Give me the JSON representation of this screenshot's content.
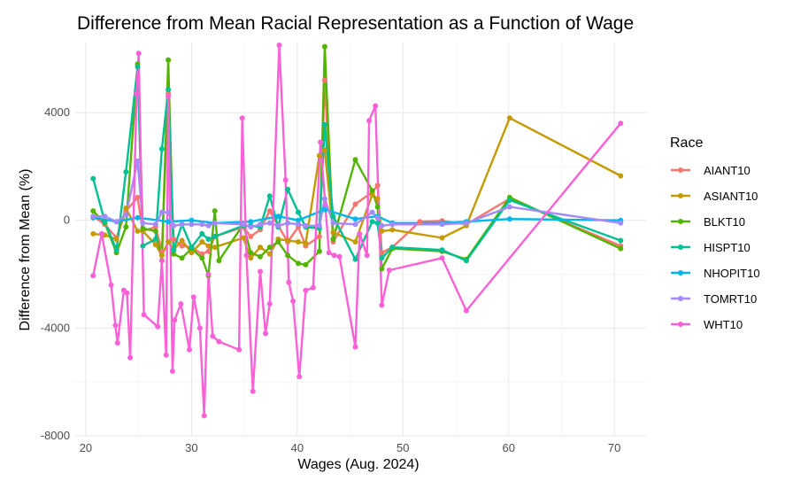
{
  "chart_data": {
    "type": "line",
    "title": "Difference from Mean Racial Representation as a Function of Wage",
    "xlabel": "Wages (Aug. 2024)",
    "ylabel": "Difference from Mean (%)",
    "xlim": [
      19,
      73
    ],
    "ylim": [
      -8000,
      6600
    ],
    "x_ticks": [
      20,
      30,
      40,
      50,
      60,
      70
    ],
    "y_ticks": [
      -8000,
      -4000,
      0,
      4000
    ],
    "grid": true,
    "legend": {
      "title": "Race",
      "position": "right"
    },
    "series": [
      {
        "name": "AIANT10",
        "color": "#F8766D",
        "points": [
          [
            20.7,
            150
          ],
          [
            21.8,
            -150
          ],
          [
            22.9,
            -650
          ],
          [
            23.8,
            350
          ],
          [
            24.9,
            850
          ],
          [
            25.4,
            -400
          ],
          [
            26.6,
            -250
          ],
          [
            27.2,
            -1150
          ],
          [
            27.8,
            4700
          ],
          [
            28.3,
            -700
          ],
          [
            29.1,
            -950
          ],
          [
            30.0,
            -1000
          ],
          [
            31.0,
            -1250
          ],
          [
            31.6,
            -1150
          ],
          [
            32.2,
            -600
          ],
          [
            34.9,
            -250
          ],
          [
            35.6,
            -600
          ],
          [
            36.5,
            -350
          ],
          [
            37.4,
            350
          ],
          [
            38.2,
            -200
          ],
          [
            39.1,
            -800
          ],
          [
            40.1,
            -250
          ],
          [
            40.8,
            -950
          ],
          [
            42.1,
            -600
          ],
          [
            42.6,
            5200
          ],
          [
            43.4,
            -800
          ],
          [
            45.5,
            600
          ],
          [
            47.1,
            1050
          ],
          [
            47.6,
            1300
          ],
          [
            48.0,
            -1200
          ],
          [
            49.0,
            -1000
          ],
          [
            51.6,
            -50
          ],
          [
            53.7,
            -20
          ],
          [
            56.0,
            -150
          ],
          [
            60.1,
            800
          ],
          [
            70.6,
            -950
          ]
        ]
      },
      {
        "name": "ASIANT10",
        "color": "#C49A00",
        "points": [
          [
            20.7,
            -500
          ],
          [
            21.8,
            -550
          ],
          [
            22.9,
            -700
          ],
          [
            23.8,
            450
          ],
          [
            24.9,
            -400
          ],
          [
            25.4,
            -400
          ],
          [
            26.6,
            -900
          ],
          [
            27.2,
            -1300
          ],
          [
            27.8,
            -800
          ],
          [
            28.3,
            -1100
          ],
          [
            29.1,
            -750
          ],
          [
            30.0,
            -1200
          ],
          [
            31.0,
            -800
          ],
          [
            31.6,
            -950
          ],
          [
            32.2,
            -1000
          ],
          [
            34.9,
            -650
          ],
          [
            35.6,
            -1400
          ],
          [
            36.5,
            -1000
          ],
          [
            37.4,
            -1250
          ],
          [
            38.2,
            -700
          ],
          [
            39.1,
            -750
          ],
          [
            40.1,
            -800
          ],
          [
            40.8,
            -850
          ],
          [
            42.1,
            2400
          ],
          [
            42.6,
            2600
          ],
          [
            43.4,
            -450
          ],
          [
            45.5,
            -800
          ],
          [
            47.1,
            950
          ],
          [
            47.6,
            800
          ],
          [
            48.0,
            -400
          ],
          [
            49.0,
            -350
          ],
          [
            53.7,
            -650
          ],
          [
            56.0,
            -200
          ],
          [
            60.1,
            3800
          ],
          [
            70.6,
            1650
          ]
        ]
      },
      {
        "name": "BLKT10",
        "color": "#53B400",
        "points": [
          [
            20.7,
            350
          ],
          [
            21.8,
            -100
          ],
          [
            22.9,
            -1200
          ],
          [
            23.8,
            -250
          ],
          [
            24.9,
            5800
          ],
          [
            25.4,
            -300
          ],
          [
            26.6,
            -400
          ],
          [
            27.2,
            -1500
          ],
          [
            27.8,
            5950
          ],
          [
            28.3,
            -1250
          ],
          [
            29.1,
            -1400
          ],
          [
            30.0,
            -1050
          ],
          [
            31.0,
            -1400
          ],
          [
            31.6,
            -2050
          ],
          [
            32.2,
            350
          ],
          [
            32.6,
            -1500
          ],
          [
            34.9,
            -150
          ],
          [
            35.6,
            -1200
          ],
          [
            36.5,
            -1350
          ],
          [
            37.4,
            -1000
          ],
          [
            38.2,
            -800
          ],
          [
            39.1,
            -1300
          ],
          [
            40.1,
            -1600
          ],
          [
            40.8,
            -1650
          ],
          [
            42.1,
            -1150
          ],
          [
            42.6,
            6450
          ],
          [
            43.4,
            -700
          ],
          [
            45.5,
            2250
          ],
          [
            47.1,
            1100
          ],
          [
            47.6,
            500
          ],
          [
            48.0,
            -1800
          ],
          [
            49.0,
            -1050
          ],
          [
            53.7,
            -1150
          ],
          [
            56.0,
            -1450
          ],
          [
            60.1,
            850
          ],
          [
            70.6,
            -1050
          ]
        ]
      },
      {
        "name": "HISPT10",
        "color": "#00C094",
        "points": [
          [
            20.7,
            1550
          ],
          [
            21.8,
            -50
          ],
          [
            22.9,
            -1100
          ],
          [
            23.8,
            1800
          ],
          [
            24.9,
            5700
          ],
          [
            25.4,
            -950
          ],
          [
            26.6,
            -700
          ],
          [
            27.2,
            2650
          ],
          [
            27.8,
            4850
          ],
          [
            28.3,
            -1100
          ],
          [
            29.1,
            -150
          ],
          [
            30.0,
            -1000
          ],
          [
            31.0,
            -500
          ],
          [
            31.6,
            -700
          ],
          [
            32.2,
            -600
          ],
          [
            34.9,
            -200
          ],
          [
            35.6,
            -200
          ],
          [
            36.5,
            -250
          ],
          [
            37.4,
            900
          ],
          [
            38.2,
            -250
          ],
          [
            39.1,
            1150
          ],
          [
            40.1,
            300
          ],
          [
            40.8,
            -250
          ],
          [
            42.1,
            -300
          ],
          [
            42.6,
            3550
          ],
          [
            43.4,
            150
          ],
          [
            45.5,
            -1450
          ],
          [
            47.1,
            -50
          ],
          [
            47.6,
            -100
          ],
          [
            48.0,
            -1400
          ],
          [
            49.0,
            -1000
          ],
          [
            53.7,
            -1100
          ],
          [
            56.0,
            -1500
          ],
          [
            60.1,
            750
          ],
          [
            70.6,
            -750
          ]
        ]
      },
      {
        "name": "NHOPIT10",
        "color": "#00B6EB",
        "points": [
          [
            20.7,
            100
          ],
          [
            22.9,
            -50
          ],
          [
            24.9,
            100
          ],
          [
            27.8,
            -50
          ],
          [
            30.0,
            0
          ],
          [
            32.2,
            -100
          ],
          [
            35.6,
            -50
          ],
          [
            38.2,
            150
          ],
          [
            40.1,
            0
          ],
          [
            42.6,
            400
          ],
          [
            45.5,
            50
          ],
          [
            47.6,
            150
          ],
          [
            49.0,
            -100
          ],
          [
            53.7,
            -100
          ],
          [
            56.0,
            -50
          ],
          [
            60.1,
            50
          ],
          [
            70.6,
            0
          ]
        ]
      },
      {
        "name": "TOMRT10",
        "color": "#A58AFF",
        "points": [
          [
            20.7,
            150
          ],
          [
            21.8,
            150
          ],
          [
            22.9,
            -50
          ],
          [
            23.8,
            200
          ],
          [
            24.9,
            2200
          ],
          [
            25.4,
            -100
          ],
          [
            26.6,
            -150
          ],
          [
            27.2,
            300
          ],
          [
            27.8,
            300
          ],
          [
            28.3,
            -200
          ],
          [
            29.1,
            -150
          ],
          [
            30.0,
            -150
          ],
          [
            31.0,
            -150
          ],
          [
            31.6,
            -200
          ],
          [
            32.2,
            -100
          ],
          [
            34.9,
            -150
          ],
          [
            35.6,
            -250
          ],
          [
            36.5,
            -150
          ],
          [
            37.4,
            -100
          ],
          [
            38.2,
            -200
          ],
          [
            39.1,
            -100
          ],
          [
            40.1,
            -150
          ],
          [
            40.8,
            -200
          ],
          [
            42.1,
            -200
          ],
          [
            42.6,
            800
          ],
          [
            43.4,
            -100
          ],
          [
            45.5,
            -150
          ],
          [
            47.1,
            300
          ],
          [
            47.6,
            100
          ],
          [
            48.0,
            -200
          ],
          [
            49.0,
            -150
          ],
          [
            53.7,
            -150
          ],
          [
            56.0,
            -100
          ],
          [
            60.1,
            500
          ],
          [
            70.6,
            -100
          ]
        ]
      },
      {
        "name": "WHT10",
        "color": "#FB61D7",
        "points": [
          [
            20.7,
            -2050
          ],
          [
            21.5,
            -500
          ],
          [
            22.4,
            -2400
          ],
          [
            22.8,
            -3900
          ],
          [
            23.0,
            -4550
          ],
          [
            23.6,
            -2600
          ],
          [
            23.9,
            -2700
          ],
          [
            24.2,
            -5100
          ],
          [
            24.8,
            4700
          ],
          [
            25.0,
            6200
          ],
          [
            25.5,
            -3500
          ],
          [
            26.8,
            -3950
          ],
          [
            27.2,
            -1500
          ],
          [
            27.6,
            -5000
          ],
          [
            27.8,
            4600
          ],
          [
            28.2,
            -5600
          ],
          [
            28.4,
            -3700
          ],
          [
            29.0,
            -3100
          ],
          [
            29.8,
            -4800
          ],
          [
            30.2,
            -2850
          ],
          [
            30.8,
            -4000
          ],
          [
            31.2,
            -7250
          ],
          [
            31.6,
            -2000
          ],
          [
            32.0,
            -4300
          ],
          [
            32.6,
            -4500
          ],
          [
            34.5,
            -4800
          ],
          [
            34.8,
            3800
          ],
          [
            35.2,
            -1300
          ],
          [
            35.8,
            -6350
          ],
          [
            36.5,
            -1900
          ],
          [
            37.0,
            -4200
          ],
          [
            37.4,
            -3100
          ],
          [
            38.3,
            6500
          ],
          [
            38.9,
            1500
          ],
          [
            39.2,
            -2300
          ],
          [
            39.6,
            -3000
          ],
          [
            40.2,
            -5800
          ],
          [
            40.8,
            -2600
          ],
          [
            41.5,
            -2500
          ],
          [
            42.2,
            2900
          ],
          [
            43.0,
            -1200
          ],
          [
            43.5,
            -1300
          ],
          [
            44.0,
            -1350
          ],
          [
            45.5,
            -4700
          ],
          [
            45.9,
            -500
          ],
          [
            46.6,
            -1300
          ],
          [
            46.8,
            3700
          ],
          [
            47.4,
            4250
          ],
          [
            48.0,
            -3150
          ],
          [
            48.7,
            -1850
          ],
          [
            53.7,
            -1400
          ],
          [
            56.0,
            -3350
          ],
          [
            70.6,
            3600
          ]
        ]
      }
    ]
  }
}
